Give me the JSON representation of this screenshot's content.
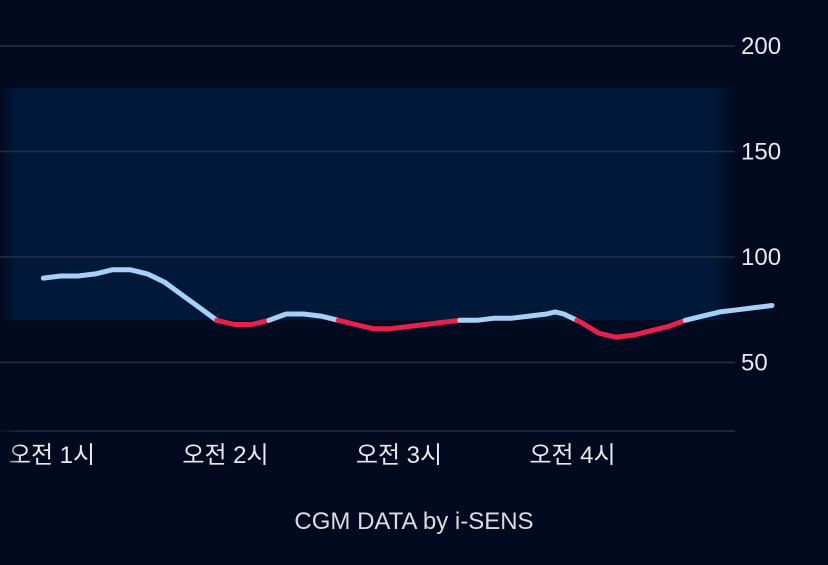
{
  "chart_data": {
    "type": "line",
    "ylim": [
      25,
      205
    ],
    "yticks": [
      200,
      150,
      100,
      50
    ],
    "target_range": [
      70,
      180
    ],
    "low_threshold": 70,
    "xticks": [
      {
        "t": 1.0,
        "label": "오전 1시"
      },
      {
        "t": 2.0,
        "label": "오전 2시"
      },
      {
        "t": 3.0,
        "label": "오전 3시"
      },
      {
        "t": 4.0,
        "label": "오전 4시"
      }
    ],
    "xlim": [
      0.95,
      5.15
    ],
    "series": [
      {
        "x": [
          0.95,
          1.05,
          1.15,
          1.25,
          1.35,
          1.45,
          1.55,
          1.65,
          1.75,
          1.85,
          1.95,
          2.05,
          2.15,
          2.25,
          2.35,
          2.45,
          2.55,
          2.65,
          2.75,
          2.85,
          2.95,
          3.05,
          3.15,
          3.25,
          3.35,
          3.45,
          3.55,
          3.65,
          3.75,
          3.85,
          3.9,
          3.95,
          4.05,
          4.15,
          4.25,
          4.35,
          4.45,
          4.55,
          4.65,
          4.75,
          4.85,
          4.95,
          5.05,
          5.15
        ],
        "y": [
          90,
          91,
          91,
          92,
          94,
          94,
          92,
          88,
          82,
          76,
          70,
          68,
          68,
          70,
          73,
          73,
          72,
          70,
          68,
          66,
          66,
          67,
          68,
          69,
          70,
          70,
          71,
          71,
          72,
          73,
          74,
          73,
          69,
          64,
          62,
          63,
          65,
          67,
          70,
          72,
          74,
          75,
          76,
          77
        ]
      }
    ],
    "colors": {
      "line": "#a8cff5",
      "low": "#e8204f",
      "band": "#001938",
      "grid": "#24304a",
      "background": "#020a1f"
    }
  },
  "footer": "CGM DATA by i-SENS"
}
